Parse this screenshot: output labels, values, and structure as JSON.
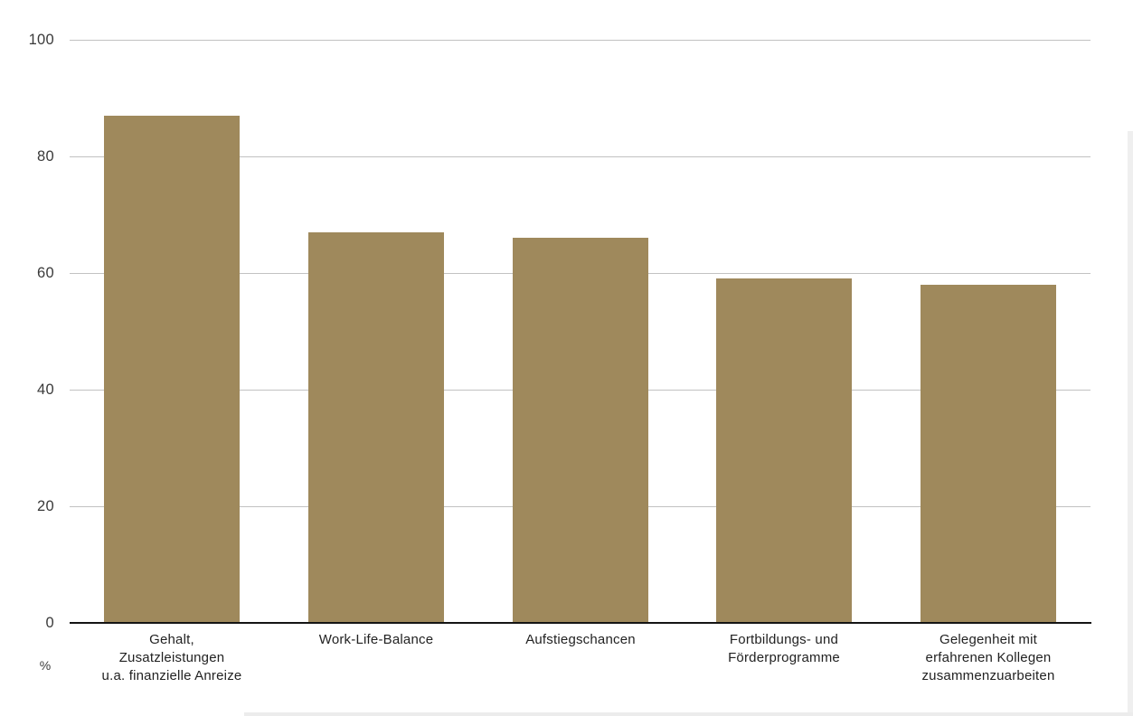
{
  "chart_data": {
    "type": "bar",
    "title": "",
    "categories": [
      "Gehalt,\nZusatzleistungen\nu.a. finanzielle Anreize",
      "Work-Life-Balance",
      "Aufstiegschancen",
      "Fortbildungs- und\nFörderprogramme",
      "Gelegenheit mit\nerfahrenen Kollegen\nzusammenzuarbeiten"
    ],
    "values": [
      87,
      67,
      66,
      59,
      58
    ],
    "xlabel": "",
    "ylabel": "%",
    "ylim": [
      0,
      100
    ],
    "yticks": [
      0,
      20,
      40,
      60,
      80,
      100
    ],
    "grid": true,
    "legend": false,
    "colors": {
      "bar": "#9f895c",
      "gridline": "#c2c2c2",
      "axis_line": "#141414",
      "tick_label": "#3a3a3a",
      "category_label": "#222222",
      "background": "#ffffff",
      "page_edge": "#ececec"
    }
  }
}
